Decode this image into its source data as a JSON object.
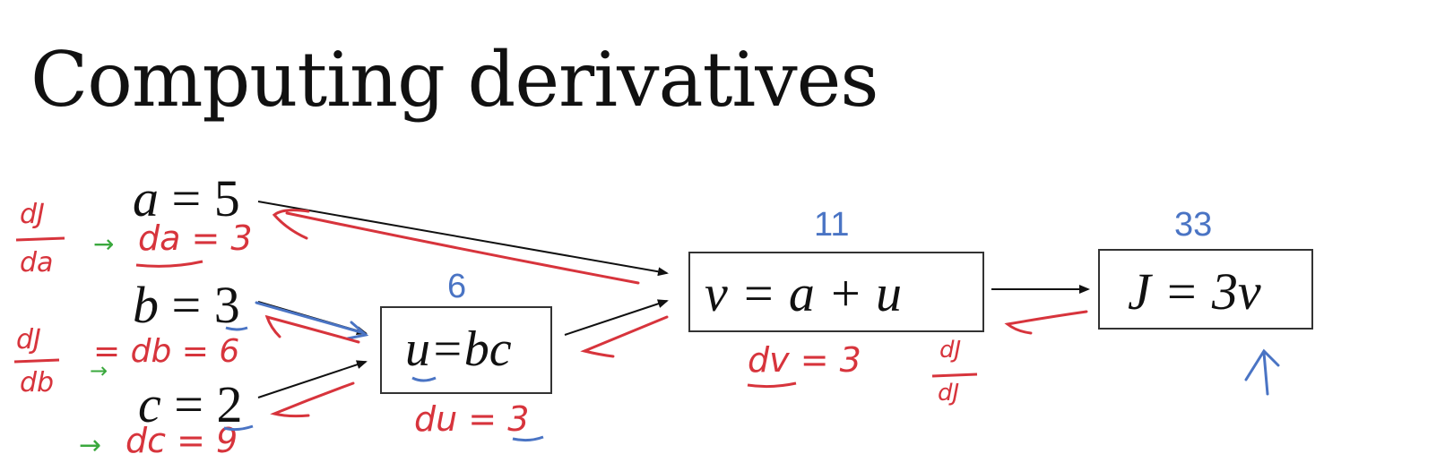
{
  "title": "Computing derivatives",
  "inputs": {
    "a": {
      "var": "a",
      "eq": " = ",
      "val": "5"
    },
    "b": {
      "var": "b",
      "eq": " = ",
      "val": "3"
    },
    "c": {
      "var": "c",
      "eq": " = ",
      "val": "2"
    }
  },
  "nodes": {
    "u": {
      "formula_var": "u",
      "formula_rest": "=bc",
      "value": "6"
    },
    "v": {
      "formula": "v = a + u",
      "value": "11"
    },
    "J": {
      "formula": "J = 3v",
      "value": "33"
    }
  },
  "annotations": {
    "dJ_da_num": "dJ",
    "dJ_da_den": "da",
    "da_eq": "da = 3",
    "dJ_db_num": "dJ",
    "dJ_db_den": "db",
    "db_eq": "= db = 6",
    "dc_eq": "dc = 9",
    "du_eq": "du = 3",
    "dv_eq": "dv = 3",
    "dJ_dJ_num": "dJ",
    "dJ_dJ_den": "dJ",
    "arrow_glyph": "→"
  },
  "colors": {
    "handwriting_red": "#d7343c",
    "handwriting_blue": "#4a74c4",
    "handwriting_green": "#3aa83d",
    "ink": "#111111"
  }
}
